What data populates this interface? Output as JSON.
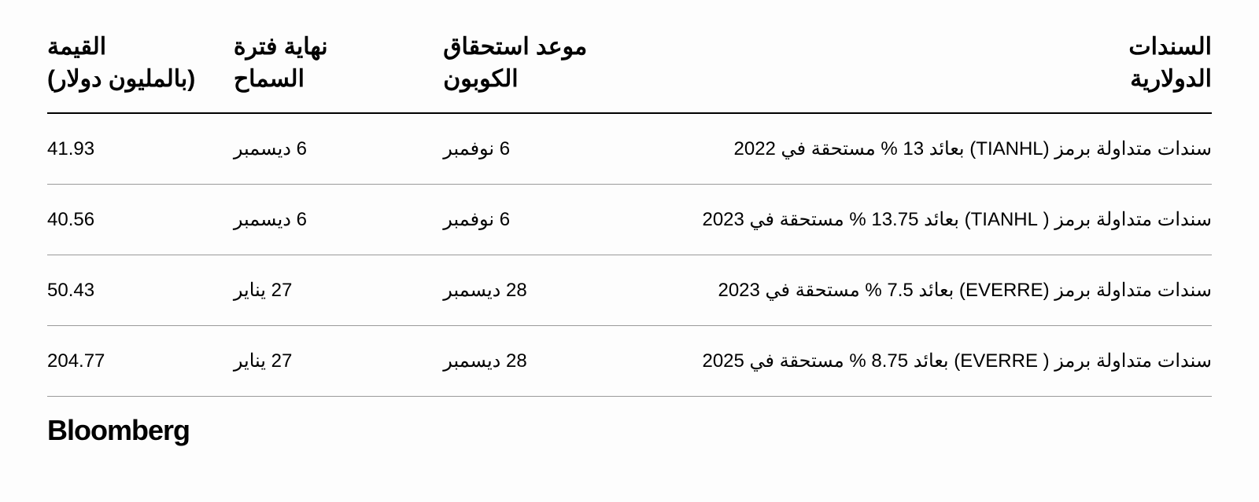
{
  "table": {
    "columns": {
      "bonds": "السندات\nالدولارية",
      "coupon": "موعد استحقاق\nالكوبون",
      "grace": "نهاية فترة\nالسماح",
      "value": "القيمة\n(بالمليون دولار)"
    },
    "rows": [
      {
        "bonds": "سندات متداولة برمز (TIANHL) بعائد 13 % مستحقة في 2022",
        "coupon": "6 نوفمبر",
        "grace": "6 ديسمبر",
        "value": "41.93"
      },
      {
        "bonds": "سندات متداولة برمز ( TIANHL) بعائد 13.75 % مستحقة في 2023",
        "coupon": "6 نوفمبر",
        "grace": "6 ديسمبر",
        "value": "40.56"
      },
      {
        "bonds": "سندات متداولة برمز (EVERRE) بعائد 7.5 % مستحقة في 2023",
        "coupon": "28 ديسمبر",
        "grace": "27 يناير",
        "value": "50.43"
      },
      {
        "bonds": "سندات متداولة برمز ( EVERRE) بعائد 8.75 % مستحقة في 2025",
        "coupon": "28 ديسمبر",
        "grace": "27 يناير",
        "value": "204.77"
      }
    ]
  },
  "footer": {
    "brand": "Bloomberg"
  },
  "style": {
    "background_color": "#fdfdfd",
    "header_font_size": 30,
    "header_font_weight": 800,
    "body_font_size": 24,
    "header_border_color": "#000000",
    "row_border_color": "#9a9a9a",
    "text_color": "#000000",
    "brand_font_size": 36,
    "brand_font_weight": 900
  }
}
